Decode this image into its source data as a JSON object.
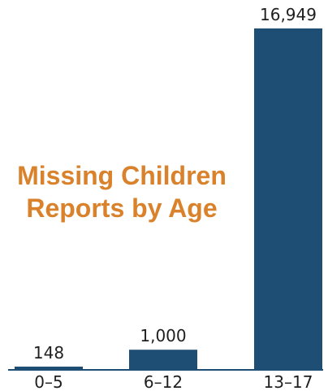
{
  "colors": {
    "bar": "#1f4e74",
    "axis": "#1f4e74",
    "title": "#d9822b",
    "text": "#1f1f1f"
  },
  "title": {
    "line1": "Missing Children",
    "line2": "Reports by Age"
  },
  "chart_data": {
    "type": "bar",
    "title": "Missing Children Reports by Age",
    "categories": [
      "0–5",
      "6–12",
      "13–17"
    ],
    "values": [
      148,
      1000,
      16949
    ],
    "value_labels": [
      "148",
      "1,000",
      "16,949"
    ],
    "xlabel": "",
    "ylabel": "",
    "ylim": [
      0,
      17500
    ],
    "grid": false,
    "legend": "none"
  }
}
